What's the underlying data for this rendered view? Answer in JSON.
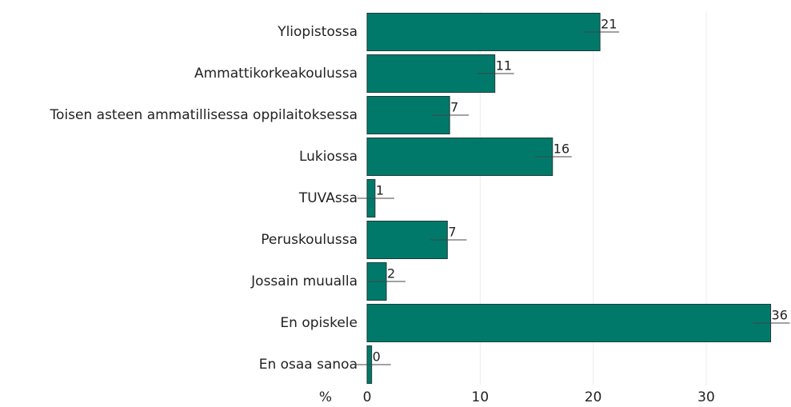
{
  "chart_data": {
    "type": "bar",
    "orientation": "horizontal",
    "categories": [
      "Yliopistossa",
      "Ammattikorkeakoulussa",
      "Toisen asteen ammatillisessa oppilaitoksessa",
      "Lukiossa",
      "TUVAssa",
      "Peruskoulussa",
      "Jossain muualla",
      "En opiskele",
      "En osaa sanoa"
    ],
    "values": [
      20.6,
      11.3,
      7.3,
      16.4,
      0.7,
      7.1,
      1.7,
      35.7,
      0.4
    ],
    "value_labels": [
      "21",
      "11",
      "7",
      "16",
      "1",
      "7",
      "2",
      "36",
      "0"
    ],
    "color": "#00796b",
    "x_label": "%",
    "xlim": [
      0,
      37.5
    ],
    "xticks": [
      0,
      10,
      20,
      30
    ],
    "grid": true
  }
}
